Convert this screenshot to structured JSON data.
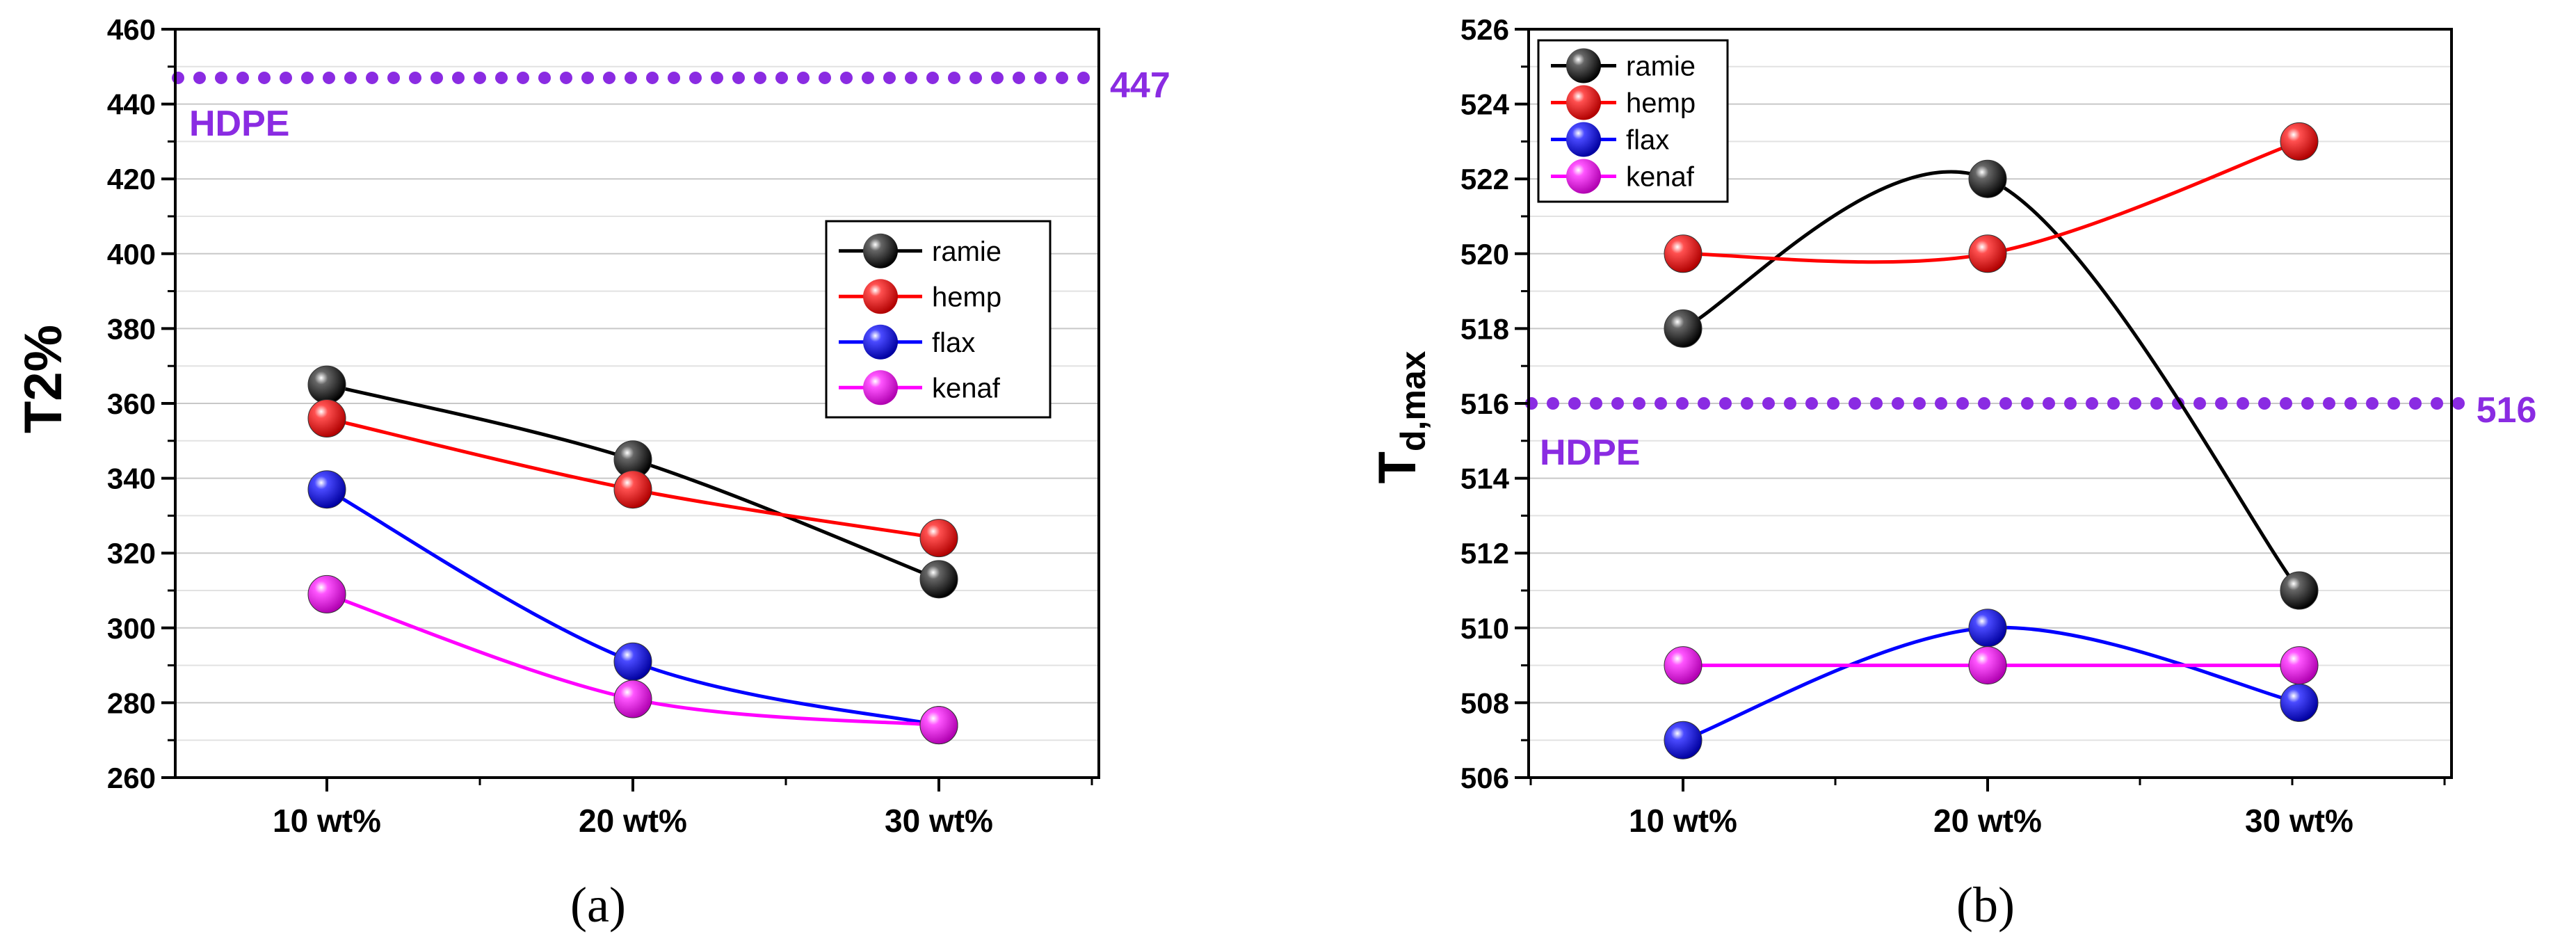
{
  "chart_data": [
    {
      "type": "line",
      "panel_label": "(a)",
      "ylabel": "T2%",
      "ylim": [
        260,
        460
      ],
      "y_major_step": 20,
      "categories": [
        "10 wt%",
        "20 wt%",
        "30 wt%"
      ],
      "series": [
        {
          "name": "ramie",
          "color": "#000000",
          "values": [
            365,
            345,
            313
          ]
        },
        {
          "name": "hemp",
          "color": "#ff0000",
          "values": [
            356,
            337,
            324
          ]
        },
        {
          "name": "flax",
          "color": "#0000ff",
          "values": [
            337,
            291,
            274
          ]
        },
        {
          "name": "kenaf",
          "color": "#ff00ff",
          "values": [
            309,
            281,
            274
          ]
        }
      ],
      "reference": {
        "name": "HDPE",
        "value": 447,
        "value_label": "447",
        "color": "#8a2be2"
      },
      "legend_position": "center-right"
    },
    {
      "type": "line",
      "panel_label": "(b)",
      "ylabel_main": "T",
      "ylabel_sub": "d,max",
      "ylim": [
        506,
        526
      ],
      "y_major_step": 2,
      "categories": [
        "10 wt%",
        "20 wt%",
        "30 wt%"
      ],
      "series": [
        {
          "name": "ramie",
          "color": "#000000",
          "values": [
            518,
            522,
            511
          ]
        },
        {
          "name": "hemp",
          "color": "#ff0000",
          "values": [
            520,
            520,
            523
          ]
        },
        {
          "name": "flax",
          "color": "#0000ff",
          "values": [
            507,
            510,
            508
          ]
        },
        {
          "name": "kenaf",
          "color": "#ff00ff",
          "values": [
            509,
            509,
            509
          ]
        }
      ],
      "reference": {
        "name": "HDPE",
        "value": 516,
        "value_label": "516",
        "color": "#8a2be2"
      },
      "legend_position": "top-left"
    }
  ]
}
